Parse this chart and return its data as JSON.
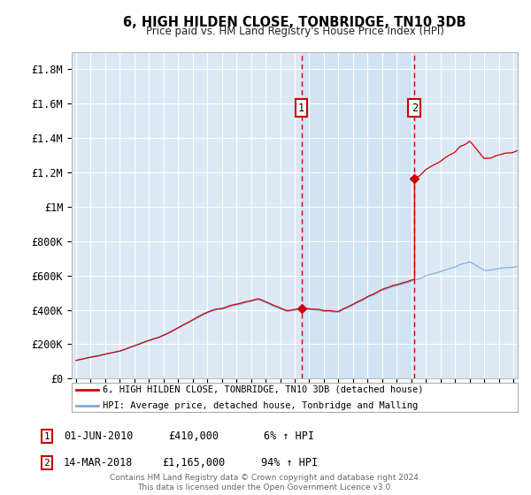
{
  "title": "6, HIGH HILDEN CLOSE, TONBRIDGE, TN10 3DB",
  "subtitle": "Price paid vs. HM Land Registry's House Price Index (HPI)",
  "ylim": [
    0,
    1900000
  ],
  "yticks": [
    0,
    200000,
    400000,
    600000,
    800000,
    1000000,
    1200000,
    1400000,
    1600000,
    1800000
  ],
  "ytick_labels": [
    "£0",
    "£200K",
    "£400K",
    "£600K",
    "£800K",
    "£1M",
    "£1.2M",
    "£1.4M",
    "£1.6M",
    "£1.8M"
  ],
  "background_color": "#ffffff",
  "plot_bg_color": "#dce9f5",
  "grid_color": "#ffffff",
  "hpi_line_color": "#7aaadd",
  "price_line_color": "#cc0000",
  "sale1_year": 2010,
  "sale1_month": 6,
  "sale1_price": 410000,
  "sale1_pct": "6%",
  "sale2_year": 2018,
  "sale2_month": 3,
  "sale2_price": 1165000,
  "sale2_pct": "94%",
  "legend_text1": "6, HIGH HILDEN CLOSE, TONBRIDGE, TN10 3DB (detached house)",
  "legend_text2": "HPI: Average price, detached house, Tonbridge and Malling",
  "sale1_date": "01-JUN-2010",
  "sale2_date": "14-MAR-2018",
  "footer": "Contains HM Land Registry data © Crown copyright and database right 2024.\nThis data is licensed under the Open Government Licence v3.0.",
  "xstart": 1995,
  "xend": 2025
}
